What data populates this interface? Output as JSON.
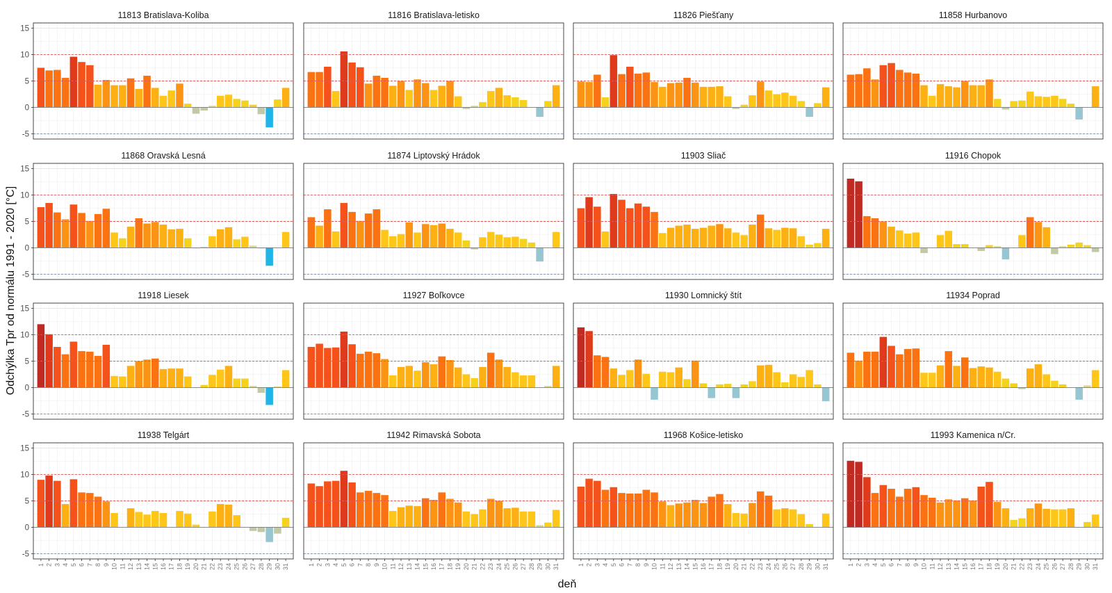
{
  "chart_data": {
    "type": "bar",
    "layout": "faceted 4x4 small multiples",
    "ylabel": "Odchýlka Tpr od normálu 1991 - 2020 [°C]",
    "xlabel": "deň",
    "ylim": [
      -6,
      16
    ],
    "yticks": [
      -5,
      0,
      5,
      10,
      15
    ],
    "reference_lines": [
      {
        "y": 10,
        "color": "#e05a5a"
      },
      {
        "y": 5,
        "color": "#e05a5a"
      },
      {
        "y": -5,
        "color": "#7a8fa8"
      }
    ],
    "days": [
      "1",
      "2",
      "3",
      "4",
      "5",
      "6",
      "7",
      "8",
      "9",
      "10",
      "11",
      "12",
      "13",
      "14",
      "15",
      "16",
      "17",
      "18",
      "19",
      "20",
      "21",
      "22",
      "23",
      "24",
      "25",
      "26",
      "27",
      "28",
      "29",
      "30",
      "31"
    ],
    "color_scale": [
      {
        "min": 11,
        "color": "#bf2a23"
      },
      {
        "min": 9.5,
        "color": "#df3a1c"
      },
      {
        "min": 7.5,
        "color": "#f4521a"
      },
      {
        "min": 5.5,
        "color": "#fb7212"
      },
      {
        "min": 4.5,
        "color": "#fb9414"
      },
      {
        "min": 3.5,
        "color": "#fcb014"
      },
      {
        "min": 2,
        "color": "#fdc618"
      },
      {
        "min": 0.5,
        "color": "#f5d21e"
      },
      {
        "min": 0,
        "color": "#d9d68a"
      },
      {
        "min": -1.5,
        "color": "#c2c9a6"
      },
      {
        "min": -2.8,
        "color": "#96c6d2"
      },
      {
        "min": -100,
        "color": "#20b4e8"
      }
    ],
    "stations": [
      {
        "name": "11813 Bratislava-Koliba",
        "values": [
          7.5,
          7.0,
          7.1,
          5.6,
          9.6,
          8.6,
          8.0,
          4.3,
          5.2,
          4.2,
          4.2,
          5.5,
          3.5,
          6.0,
          3.7,
          2.2,
          3.2,
          4.5,
          0.7,
          -1.2,
          -0.6,
          0.3,
          2.2,
          2.4,
          1.6,
          1.3,
          0.5,
          -1.3,
          -3.8,
          1.5,
          3.7
        ]
      },
      {
        "name": "11816 Bratislava-letisko",
        "values": [
          6.7,
          6.7,
          7.7,
          3.1,
          10.6,
          8.5,
          7.6,
          4.5,
          6.0,
          5.6,
          4.1,
          5.0,
          3.3,
          5.3,
          4.6,
          3.3,
          4.1,
          5.0,
          2.1,
          -0.3,
          0.3,
          1.0,
          3.1,
          3.7,
          2.3,
          1.9,
          1.4,
          0.0,
          -1.8,
          1.2,
          4.2
        ]
      },
      {
        "name": "11826 Piešťany",
        "values": [
          4.9,
          4.8,
          6.2,
          1.9,
          9.9,
          6.3,
          7.7,
          6.4,
          6.6,
          4.8,
          3.9,
          4.6,
          4.7,
          5.6,
          4.7,
          3.9,
          3.9,
          4.0,
          2.1,
          -0.3,
          0.5,
          2.3,
          4.9,
          3.2,
          2.5,
          2.8,
          2.2,
          1.2,
          -1.8,
          0.8,
          3.8
        ]
      },
      {
        "name": "11858 Hurbanovo",
        "values": [
          6.2,
          6.3,
          7.4,
          5.3,
          8.0,
          8.4,
          7.1,
          6.6,
          6.4,
          4.2,
          2.2,
          4.4,
          4.0,
          3.8,
          5.0,
          4.2,
          4.2,
          5.3,
          1.6,
          -0.4,
          1.2,
          1.3,
          3.0,
          2.1,
          2.0,
          2.2,
          1.6,
          0.7,
          -2.3,
          0.0,
          4.0
        ]
      },
      {
        "name": "11868 Oravská Lesná",
        "values": [
          7.7,
          8.5,
          6.7,
          5.4,
          8.2,
          6.6,
          5.1,
          6.4,
          7.4,
          2.9,
          1.8,
          4.0,
          5.6,
          4.6,
          4.9,
          4.4,
          3.5,
          3.6,
          1.8,
          -0.1,
          0.2,
          2.2,
          3.5,
          3.9,
          1.6,
          2.1,
          0.4,
          -0.1,
          -3.4,
          0.0,
          3.0
        ]
      },
      {
        "name": "11874 Liptovský Hrádok",
        "values": [
          5.8,
          4.2,
          7.3,
          3.1,
          8.5,
          6.8,
          5.1,
          6.5,
          7.3,
          3.4,
          2.2,
          2.6,
          4.8,
          2.9,
          4.5,
          4.3,
          4.6,
          3.6,
          2.9,
          1.4,
          -0.3,
          2.0,
          3.0,
          2.5,
          2.0,
          2.1,
          1.7,
          1.0,
          -2.6,
          0.0,
          3.0
        ]
      },
      {
        "name": "11903 Sliač",
        "values": [
          7.5,
          9.6,
          7.8,
          3.1,
          10.2,
          9.1,
          7.5,
          8.4,
          7.8,
          6.8,
          2.8,
          3.8,
          4.2,
          4.4,
          3.6,
          3.8,
          4.2,
          4.5,
          3.7,
          2.9,
          2.4,
          4.4,
          6.3,
          3.7,
          3.4,
          3.8,
          3.7,
          2.2,
          0.6,
          0.9,
          3.6
        ]
      },
      {
        "name": "11916 Chopok",
        "values": [
          13.1,
          12.6,
          6.0,
          5.6,
          5.0,
          4.0,
          3.3,
          2.7,
          2.9,
          -1.0,
          0.0,
          2.4,
          3.2,
          0.7,
          0.7,
          0.0,
          -0.6,
          0.5,
          0.3,
          -2.2,
          0.0,
          2.4,
          5.8,
          4.9,
          3.9,
          -1.2,
          0.3,
          0.6,
          1.0,
          0.5,
          -0.8
        ]
      },
      {
        "name": "11918 Liesek",
        "values": [
          12.0,
          10.1,
          7.7,
          6.3,
          8.7,
          6.9,
          6.8,
          6.0,
          8.1,
          2.2,
          2.1,
          4.1,
          5.0,
          5.3,
          5.5,
          3.5,
          3.6,
          3.6,
          2.1,
          0.0,
          0.5,
          2.4,
          3.4,
          4.1,
          1.7,
          1.7,
          0.3,
          -1.0,
          -3.3,
          0.2,
          3.3
        ]
      },
      {
        "name": "11927 Boľkovce",
        "values": [
          7.7,
          8.3,
          7.5,
          7.6,
          10.6,
          8.2,
          6.4,
          6.8,
          6.5,
          5.4,
          2.3,
          3.9,
          4.1,
          3.2,
          4.8,
          4.4,
          5.9,
          5.2,
          3.8,
          2.5,
          1.8,
          3.9,
          6.6,
          5.3,
          3.9,
          2.9,
          2.3,
          2.3,
          0.0,
          0.3,
          4.1
        ]
      },
      {
        "name": "11930 Lomnický štít",
        "values": [
          11.4,
          10.7,
          6.1,
          5.8,
          3.6,
          2.4,
          3.3,
          5.3,
          2.6,
          -2.3,
          3.0,
          2.9,
          3.8,
          1.6,
          5.1,
          0.8,
          -2.0,
          0.6,
          0.7,
          -2.0,
          0.6,
          1.2,
          4.2,
          4.3,
          2.9,
          1.0,
          2.5,
          2.0,
          3.3,
          0.6,
          -2.6
        ]
      },
      {
        "name": "11934 Poprad",
        "values": [
          6.6,
          5.1,
          6.8,
          6.8,
          9.6,
          7.9,
          6.3,
          7.3,
          7.4,
          2.8,
          2.8,
          4.2,
          6.9,
          4.1,
          5.7,
          3.7,
          4.0,
          3.8,
          3.0,
          1.7,
          0.8,
          -0.3,
          3.6,
          4.4,
          2.5,
          1.3,
          0.6,
          0.0,
          -2.3,
          0.4,
          3.3
        ]
      },
      {
        "name": "11938 Telgárt",
        "values": [
          9.0,
          9.8,
          8.8,
          4.4,
          9.1,
          6.6,
          6.5,
          5.8,
          4.9,
          2.7,
          0.0,
          3.6,
          2.9,
          2.4,
          3.1,
          2.7,
          0.0,
          3.1,
          2.6,
          0.5,
          0.0,
          3.0,
          4.4,
          4.3,
          2.3,
          0.0,
          -0.7,
          -0.9,
          -2.8,
          -1.2,
          1.8
        ]
      },
      {
        "name": "11942 Rimavská Sobota",
        "values": [
          8.3,
          7.8,
          8.7,
          8.8,
          10.7,
          8.5,
          6.6,
          6.9,
          6.5,
          6.1,
          3.1,
          3.8,
          4.1,
          4.0,
          5.5,
          5.2,
          6.6,
          5.4,
          4.7,
          3.0,
          2.5,
          3.4,
          5.4,
          5.0,
          3.6,
          3.7,
          3.0,
          3.0,
          0.4,
          0.9,
          3.3
        ]
      },
      {
        "name": "11968 Košice-letisko",
        "values": [
          7.7,
          9.2,
          8.8,
          7.1,
          7.6,
          6.5,
          6.4,
          6.4,
          7.1,
          6.6,
          4.9,
          4.2,
          4.5,
          4.7,
          5.2,
          4.6,
          5.8,
          6.3,
          4.4,
          2.7,
          2.6,
          4.6,
          6.8,
          6.0,
          3.4,
          3.6,
          3.4,
          2.5,
          0.6,
          0.0,
          2.6
        ]
      },
      {
        "name": "11993 Kamenica n/Cr.",
        "values": [
          12.6,
          12.4,
          9.5,
          6.5,
          8.0,
          7.3,
          5.8,
          7.3,
          7.6,
          6.1,
          5.6,
          4.7,
          5.3,
          5.1,
          5.5,
          5.1,
          7.7,
          8.6,
          4.8,
          3.6,
          1.4,
          1.7,
          3.6,
          4.5,
          3.5,
          3.4,
          3.4,
          3.6,
          0.0,
          1.0,
          2.4
        ]
      }
    ]
  }
}
